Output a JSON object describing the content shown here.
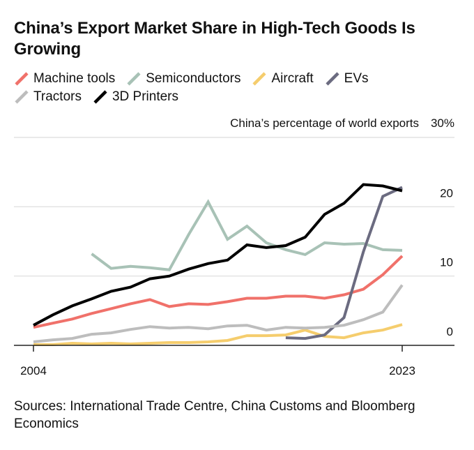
{
  "chart_data": {
    "type": "line",
    "title": "China’s Export Market Share in High-Tech Goods Is Growing",
    "ylabel": "China’s percentage of world exports",
    "ylim": [
      0,
      30
    ],
    "y_ticks": [
      {
        "value": 0,
        "label": "0"
      },
      {
        "value": 10,
        "label": "10"
      },
      {
        "value": 20,
        "label": "20"
      },
      {
        "value": 30,
        "label": "30%"
      }
    ],
    "x_range": [
      2004,
      2023
    ],
    "x_ticks": [
      {
        "value": 2004,
        "label": "2004"
      },
      {
        "value": 2023,
        "label": "2023"
      }
    ],
    "grid": true,
    "legend_position": "top-left",
    "series": [
      {
        "name": "Machine tools",
        "color": "#f0716a",
        "x": [
          2004,
          2005,
          2006,
          2007,
          2008,
          2009,
          2010,
          2011,
          2012,
          2013,
          2014,
          2015,
          2016,
          2017,
          2018,
          2019,
          2020,
          2021,
          2022,
          2023
        ],
        "y": [
          2.6,
          3.2,
          3.8,
          4.6,
          5.3,
          6.0,
          6.6,
          5.6,
          6.0,
          5.9,
          6.3,
          6.8,
          6.8,
          7.1,
          7.1,
          6.8,
          7.3,
          8.1,
          10.2,
          12.9
        ]
      },
      {
        "name": "Semiconductors",
        "color": "#a8c2b6",
        "x": [
          2007,
          2008,
          2009,
          2010,
          2011,
          2012,
          2013,
          2014,
          2015,
          2016,
          2017,
          2018,
          2019,
          2020,
          2021,
          2022,
          2023
        ],
        "y": [
          13.2,
          11.1,
          11.4,
          11.2,
          10.9,
          16.0,
          20.7,
          15.3,
          17.2,
          14.8,
          13.8,
          13.1,
          14.8,
          14.6,
          14.7,
          13.8,
          13.7
        ]
      },
      {
        "name": "Aircraft",
        "color": "#f5cd6d",
        "x": [
          2004,
          2005,
          2006,
          2007,
          2008,
          2009,
          2010,
          2011,
          2012,
          2013,
          2014,
          2015,
          2016,
          2017,
          2018,
          2019,
          2020,
          2021,
          2022,
          2023
        ],
        "y": [
          0.1,
          0.1,
          0.3,
          0.2,
          0.3,
          0.2,
          0.3,
          0.4,
          0.4,
          0.5,
          0.7,
          1.4,
          1.4,
          1.5,
          2.2,
          1.3,
          1.1,
          1.8,
          2.2,
          3.0
        ]
      },
      {
        "name": "EVs",
        "color": "#6b6b80",
        "x": [
          2017,
          2018,
          2019,
          2020,
          2021,
          2022,
          2023
        ],
        "y": [
          1.1,
          1.0,
          1.5,
          4.0,
          13.5,
          21.5,
          22.8
        ]
      },
      {
        "name": "Tractors",
        "color": "#bdbdbd",
        "x": [
          2004,
          2005,
          2006,
          2007,
          2008,
          2009,
          2010,
          2011,
          2012,
          2013,
          2014,
          2015,
          2016,
          2017,
          2018,
          2019,
          2020,
          2021,
          2022,
          2023
        ],
        "y": [
          0.5,
          0.8,
          1.0,
          1.6,
          1.8,
          2.3,
          2.7,
          2.5,
          2.6,
          2.4,
          2.8,
          2.9,
          2.2,
          2.6,
          2.5,
          2.6,
          2.9,
          3.7,
          4.8,
          8.7
        ]
      },
      {
        "name": "3D Printers",
        "color": "#000000",
        "x": [
          2004,
          2005,
          2006,
          2007,
          2008,
          2009,
          2010,
          2011,
          2012,
          2013,
          2014,
          2015,
          2016,
          2017,
          2018,
          2019,
          2020,
          2021,
          2022,
          2023
        ],
        "y": [
          2.9,
          4.4,
          5.7,
          6.7,
          7.8,
          8.4,
          9.6,
          10.0,
          11.0,
          11.8,
          12.3,
          14.5,
          14.1,
          14.4,
          15.6,
          18.9,
          20.5,
          23.2,
          23.0,
          22.3
        ]
      }
    ],
    "source": "Sources: International Trade Centre, China Customs and Bloomberg Economics"
  }
}
